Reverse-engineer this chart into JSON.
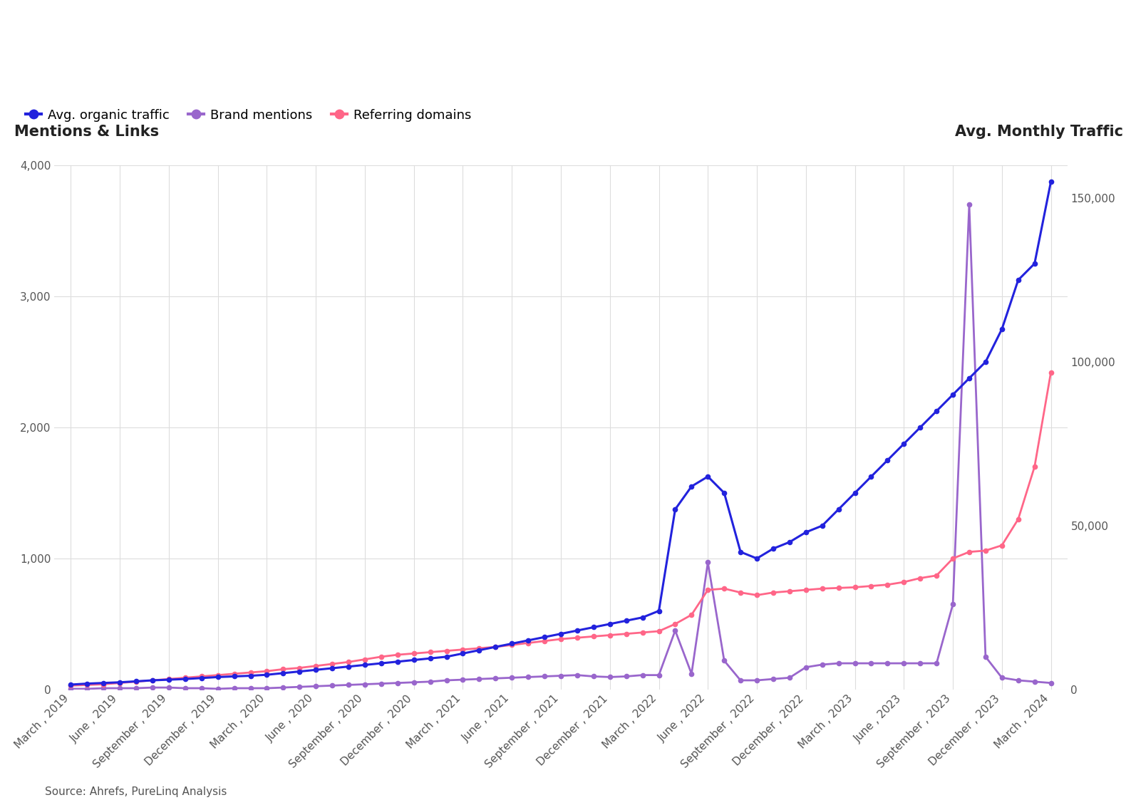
{
  "title_left": "Mentions & Links",
  "title_right": "Avg. Monthly Traffic",
  "source_text": "Source: Ahrefs, PureLinq Analysis",
  "legend_labels": [
    "Avg. organic traffic",
    "Brand mentions",
    "Referring domains"
  ],
  "traffic_color": "#2222dd",
  "mentions_color": "#9966cc",
  "domains_color": "#ff6688",
  "bg_color": "#ffffff",
  "grid_color": "#dddddd",
  "ylim_left": [
    0,
    4000
  ],
  "ylim_right": [
    0,
    160000
  ],
  "yticks_left": [
    0,
    1000,
    2000,
    3000,
    4000
  ],
  "yticks_right": [
    0,
    50000,
    100000,
    150000
  ],
  "quarterly_labels": [
    "March , 2019",
    "June , 2019",
    "September , 2019",
    "December , 2019",
    "March , 2020",
    "June , 2020",
    "September , 2020",
    "December , 2020",
    "March , 2021",
    "June , 2021",
    "September , 2021",
    "December , 2021",
    "March , 2022",
    "June , 2022",
    "September , 2022",
    "December , 2022",
    "March , 2023",
    "June , 2023",
    "September , 2023",
    "December , 2023",
    "March , 2024"
  ],
  "organic_traffic": [
    1500,
    1800,
    2000,
    2200,
    2500,
    2800,
    3000,
    3200,
    3500,
    3800,
    4000,
    4200,
    4500,
    5000,
    5500,
    6000,
    6500,
    7000,
    7500,
    8000,
    8500,
    9000,
    9500,
    10000,
    11000,
    12000,
    13000,
    14000,
    15000,
    16000,
    17000,
    18000,
    19000,
    20000,
    21000,
    22000,
    24000,
    55000,
    62000,
    65000,
    60000,
    42000,
    40000,
    43000,
    45000,
    48000,
    50000,
    55000,
    60000,
    65000,
    70000,
    75000,
    80000,
    85000,
    90000,
    95000,
    100000,
    110000,
    125000,
    130000,
    155000
  ],
  "brand_mentions": [
    5,
    5,
    10,
    10,
    10,
    15,
    15,
    10,
    10,
    5,
    10,
    10,
    10,
    15,
    20,
    25,
    30,
    35,
    40,
    45,
    50,
    55,
    60,
    70,
    75,
    80,
    85,
    90,
    95,
    100,
    105,
    110,
    100,
    95,
    100,
    110,
    110,
    450,
    120,
    970,
    220,
    70,
    70,
    80,
    90,
    170,
    190,
    200,
    200,
    200,
    200,
    200,
    200,
    200,
    650,
    3700,
    250,
    90,
    70,
    60,
    50
  ],
  "referring_domains": [
    30,
    35,
    40,
    50,
    60,
    70,
    80,
    90,
    100,
    110,
    120,
    130,
    140,
    155,
    165,
    180,
    195,
    210,
    230,
    250,
    265,
    275,
    285,
    295,
    305,
    315,
    325,
    340,
    355,
    370,
    385,
    395,
    405,
    415,
    425,
    435,
    445,
    500,
    570,
    760,
    770,
    740,
    720,
    740,
    750,
    760,
    770,
    775,
    780,
    790,
    800,
    820,
    850,
    870,
    1000,
    1050,
    1060,
    1100,
    1300,
    1700,
    2420
  ]
}
